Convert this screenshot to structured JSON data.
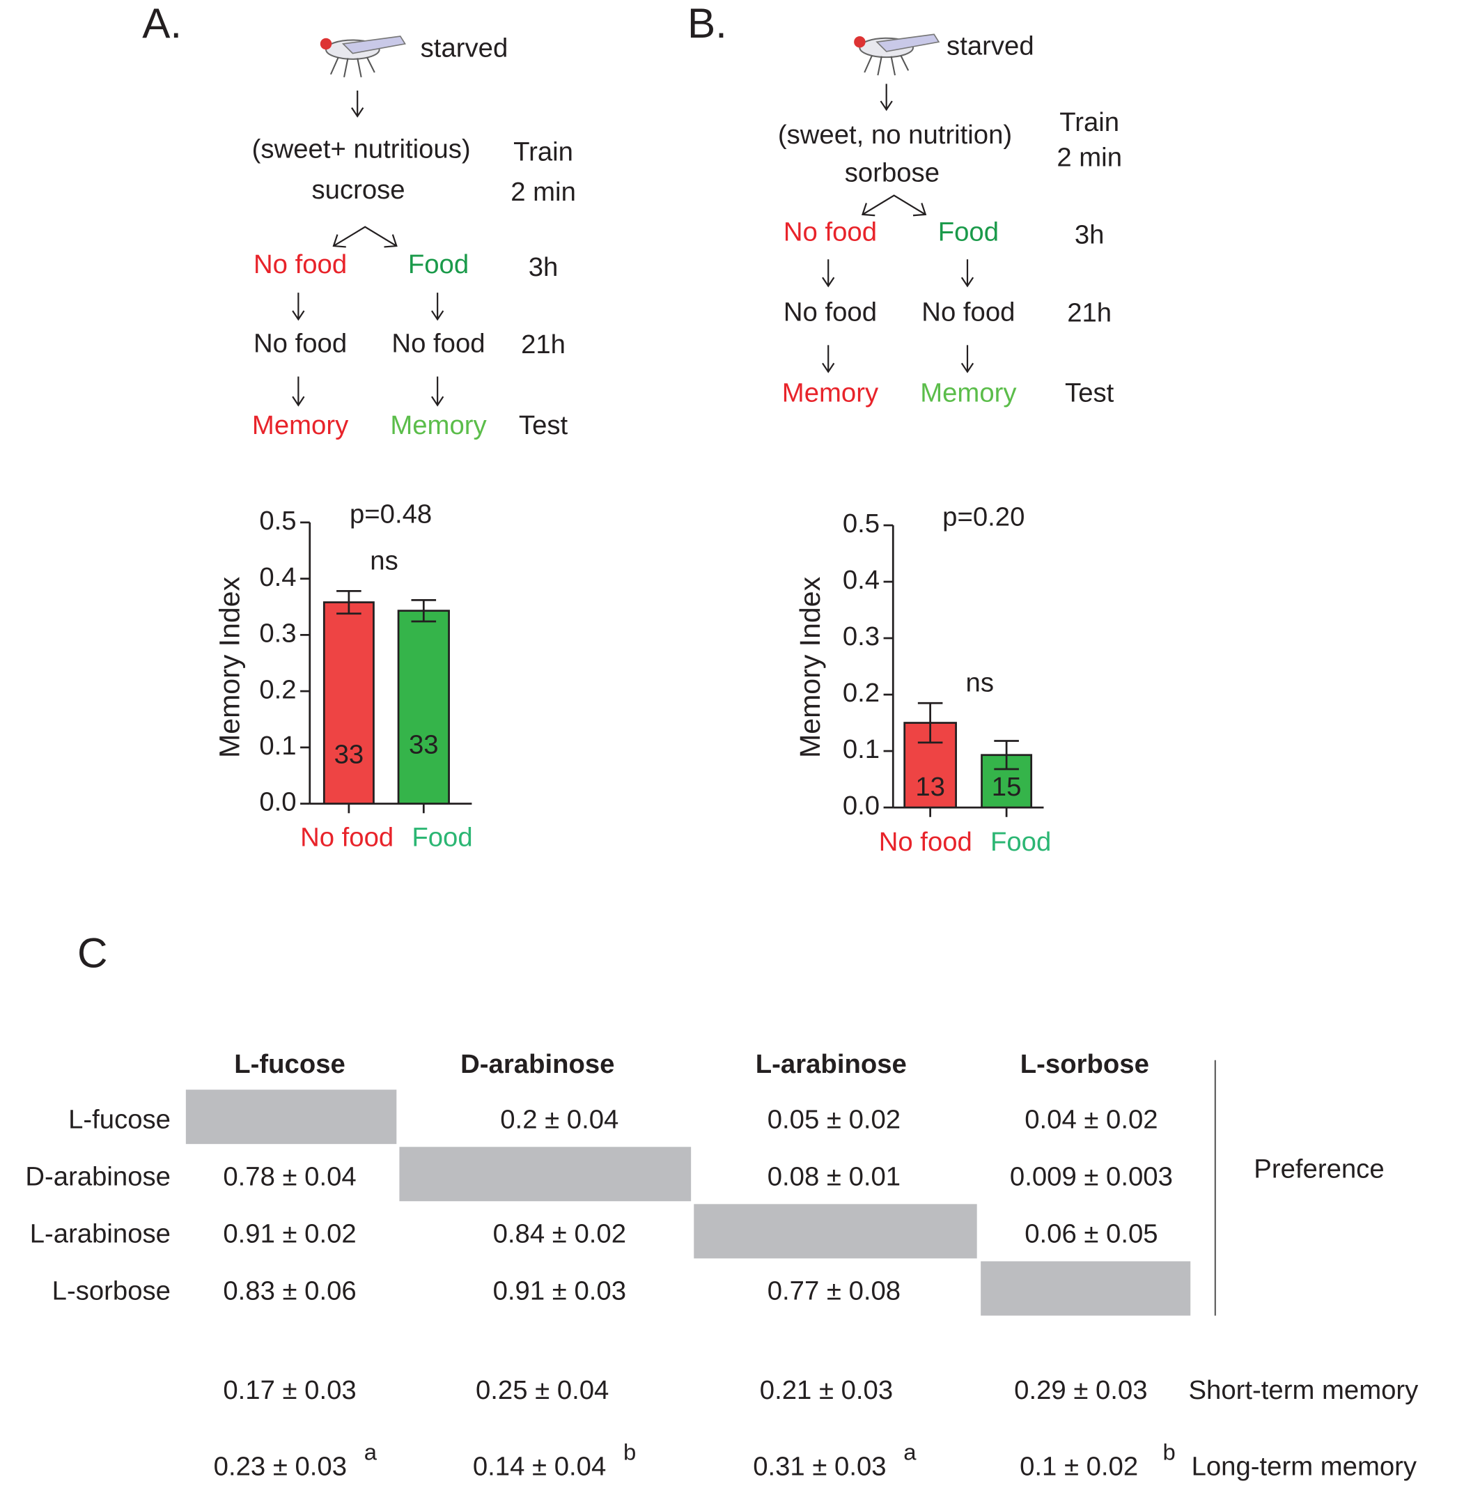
{
  "chart_data": [
    {
      "type": "bar",
      "ylabel": "Memory Index",
      "categories": [
        "No food",
        "Food"
      ],
      "values": [
        0.358,
        0.343
      ],
      "errors": [
        0.02,
        0.019
      ],
      "n": [
        33,
        33
      ],
      "colors": [
        "#ee4444",
        "#35b44a"
      ],
      "label_colors": [
        "#e8232a",
        "#2bb673"
      ],
      "ylim": [
        0,
        0.5
      ],
      "yticks": [
        {
          "value": 0,
          "label": "0.0"
        },
        0.1,
        0.2,
        0.3,
        0.4,
        0.5
      ],
      "annotations": [
        "p=0.48",
        "ns"
      ]
    },
    {
      "type": "bar",
      "ylabel": "Memory Index",
      "categories": [
        "No food",
        "Food"
      ],
      "values": [
        0.15,
        0.093
      ],
      "errors": [
        0.035,
        0.025
      ],
      "n": [
        13,
        15
      ],
      "colors": [
        "#ee4444",
        "#35b44a"
      ],
      "label_colors": [
        "#e8232a",
        "#2bb673"
      ],
      "ylim": [
        0,
        0.5
      ],
      "yticks": [
        {
          "value": 0,
          "label": "0.0"
        },
        0.1,
        0.2,
        0.3,
        0.4,
        0.5
      ],
      "annotations": [
        "p=0.20",
        "ns"
      ]
    }
  ],
  "diagrams": [
    {
      "panel": "A.",
      "state": "starved",
      "stimulus": "(sweet+ nutritious)",
      "sugar": "sucrose",
      "train": "Train",
      "duration": "2 min",
      "branches": [
        "No food",
        "Food"
      ],
      "step1": "3h",
      "after": [
        "No food",
        "No food"
      ],
      "step2": "21h",
      "outcome": [
        "Memory",
        "Memory"
      ],
      "step3": "Test"
    },
    {
      "panel": "B.",
      "state": "starved",
      "stimulus": "(sweet, no nutrition)",
      "sugar": "sorbose",
      "train": "Train",
      "duration": "2 min",
      "branches": [
        "No food",
        "Food"
      ],
      "step1": "3h",
      "after": [
        "No food",
        "No food"
      ],
      "step2": "21h",
      "outcome": [
        "Memory",
        "Memory"
      ],
      "step3": "Test"
    }
  ],
  "table": {
    "panel": "C",
    "columns": [
      "L-fucose",
      "D-arabinose",
      "L-arabinose",
      "L-sorbose"
    ],
    "rows": [
      {
        "label": "L-fucose",
        "cells": [
          null,
          "0.2 ± 0.04",
          "0.05 ± 0.02",
          "0.04 ± 0.02"
        ]
      },
      {
        "label": "D-arabinose",
        "cells": [
          "0.78 ± 0.04",
          null,
          "0.08 ± 0.01",
          "0.009 ± 0.003"
        ]
      },
      {
        "label": "L-arabinose",
        "cells": [
          "0.91 ± 0.02",
          "0.84 ± 0.02",
          null,
          "0.06 ± 0.05"
        ]
      },
      {
        "label": "L-sorbose",
        "cells": [
          "0.83 ± 0.06",
          "0.91 ± 0.03",
          "0.77 ± 0.08",
          null
        ]
      }
    ],
    "group_label": "Preference",
    "short_term": {
      "label": "Short-term memory",
      "cells": [
        "0.17 ± 0.03",
        "0.25 ± 0.04",
        "0.21 ± 0.03",
        "0.29 ± 0.03"
      ]
    },
    "long_term": {
      "label": "Long-term memory",
      "cells": [
        "0.23 ± 0.03",
        "0.14 ± 0.04",
        "0.31 ± 0.03",
        "0.1 ± 0.02"
      ],
      "superscripts": [
        "a",
        "b",
        "a",
        "b"
      ]
    }
  }
}
